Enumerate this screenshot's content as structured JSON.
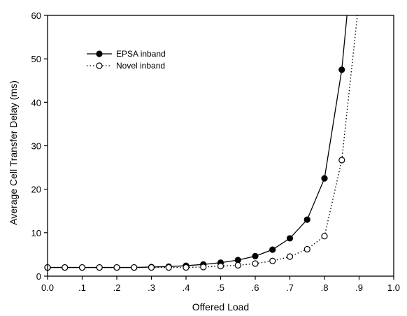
{
  "chart_data": {
    "type": "line",
    "xlabel": "Offered Load",
    "ylabel": "Average Cell Transfer Delay (ms)",
    "xlim": [
      0.0,
      1.0
    ],
    "ylim": [
      0,
      60
    ],
    "x_ticks": [
      0.0,
      0.1,
      0.2,
      0.3,
      0.4,
      0.5,
      0.6,
      0.7,
      0.8,
      0.9,
      1.0
    ],
    "x_tick_labels": [
      "0.0",
      ".1",
      ".2",
      ".3",
      ".4",
      ".5",
      ".6",
      ".7",
      ".8",
      ".9",
      "1.0"
    ],
    "y_ticks": [
      0,
      10,
      20,
      30,
      40,
      50,
      60
    ],
    "y_tick_labels": [
      "0",
      "10",
      "20",
      "30",
      "40",
      "50",
      "60"
    ],
    "grid": false,
    "legend_position": "top-left",
    "series": [
      {
        "name": "EPSA inband",
        "marker": "filled-circle",
        "line_style": "solid",
        "color": "#000000",
        "x": [
          0.0,
          0.05,
          0.1,
          0.15,
          0.2,
          0.25,
          0.3,
          0.35,
          0.4,
          0.45,
          0.5,
          0.55,
          0.6,
          0.65,
          0.7,
          0.75,
          0.8,
          0.85
        ],
        "values": [
          2.0,
          2.0,
          2.0,
          2.0,
          2.0,
          2.0,
          2.1,
          2.2,
          2.4,
          2.7,
          3.1,
          3.7,
          4.6,
          6.1,
          8.7,
          13.0,
          22.5,
          47.5
        ],
        "curve_continues_to": [
          0.865,
          60
        ]
      },
      {
        "name": "Novel inband",
        "marker": "open-circle",
        "line_style": "dotted",
        "color": "#000000",
        "x": [
          0.0,
          0.05,
          0.1,
          0.15,
          0.2,
          0.25,
          0.3,
          0.35,
          0.4,
          0.45,
          0.5,
          0.55,
          0.6,
          0.65,
          0.7,
          0.75,
          0.8,
          0.85
        ],
        "values": [
          2.0,
          2.0,
          2.0,
          2.0,
          2.0,
          2.0,
          2.0,
          2.0,
          2.0,
          2.1,
          2.3,
          2.5,
          2.9,
          3.5,
          4.5,
          6.2,
          9.2,
          26.7
        ],
        "curve_continues_to": [
          0.895,
          60
        ]
      }
    ]
  }
}
